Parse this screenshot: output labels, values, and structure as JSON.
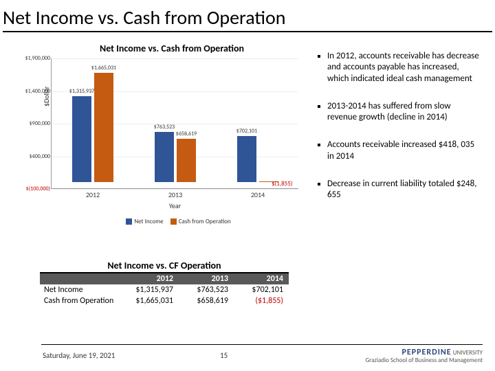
{
  "title": "Net Income vs. Cash from Operation",
  "chart": {
    "type": "bar",
    "title": "Net Income vs. Cash from Operation",
    "y_axis_label": "$Dollar",
    "x_axis_label": "Year",
    "ylim": [
      -100000,
      1900000
    ],
    "y_ticks": [
      {
        "pos": 0,
        "label": "$1,900,000"
      },
      {
        "pos": 25,
        "label": "$1,400,000"
      },
      {
        "pos": 50,
        "label": "$900,000"
      },
      {
        "pos": 75,
        "label": "$400,000"
      },
      {
        "pos": 100,
        "label": "$(100,000)",
        "neg": true
      }
    ],
    "categories": [
      "2012",
      "2013",
      "2014"
    ],
    "series": [
      {
        "name": "Net Income",
        "color": "#2f5597",
        "values": [
          1315937,
          763523,
          702101
        ],
        "labels": [
          "$1,315,937",
          "$763,523",
          "$702,101"
        ]
      },
      {
        "name": "Cash from Operation",
        "color": "#c55a11",
        "values": [
          1665031,
          658619,
          -1855
        ],
        "labels": [
          "$1,665,031",
          "$658,619",
          "$(1,855)"
        ]
      }
    ],
    "background_color": "#ffffff",
    "grid_color": "#eeeeee"
  },
  "table": {
    "title": "Net Income vs. CF Operation",
    "columns": [
      "",
      "2012",
      "2013",
      "2014"
    ],
    "rows": [
      {
        "label": "Net Income",
        "cells": [
          "$1,315,937",
          "$763,523",
          "$702,101"
        ]
      },
      {
        "label": "Cash from Operation",
        "cells": [
          "$1,665,031",
          "$658,619",
          "($1,855)"
        ],
        "neg_cols": [
          2
        ]
      }
    ]
  },
  "bullets": [
    "In 2012, accounts receivable has decrease and accounts payable has increased, which indicated ideal cash management",
    "2013-2014 has suffered from slow revenue growth (decline in 2014)",
    "Accounts receivable increased $418, 035 in 2014",
    "Decrease in current liability totaled $248, 655"
  ],
  "footer": {
    "date": "Saturday, June 19, 2021",
    "page": "15",
    "logo_brand": "PEPPERDINE",
    "logo_sub": "UNIVERSITY",
    "logo_school": "Graziadio School of Business and Management"
  }
}
